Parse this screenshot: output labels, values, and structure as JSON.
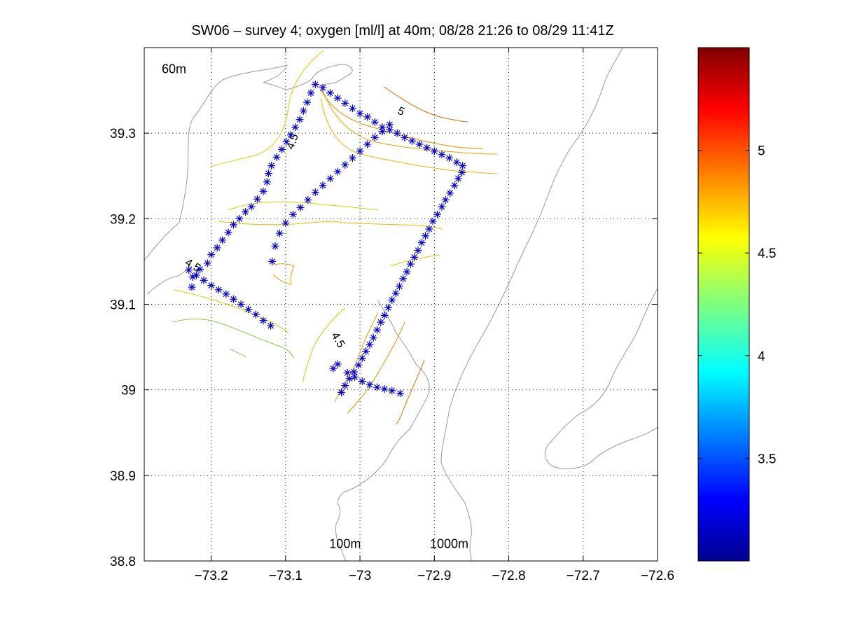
{
  "chart_data": {
    "type": "scatter",
    "title": "SW06 – survey 4; oxygen [ml/l] at 40m; 08/28 21:26 to 08/29 11:41Z",
    "xlabel": "",
    "ylabel": "",
    "xlim": [
      -73.29,
      -72.6
    ],
    "ylim": [
      38.8,
      39.4
    ],
    "xticks": [
      -73.2,
      -73.1,
      -73.0,
      -72.9,
      -72.8,
      -72.7,
      -72.6
    ],
    "xtick_labels": [
      "−73.2",
      "−73.1",
      "−73",
      "−72.9",
      "−72.8",
      "−72.7",
      "−72.6"
    ],
    "yticks": [
      38.8,
      38.9,
      39.0,
      39.1,
      39.2,
      39.3
    ],
    "ytick_labels": [
      "38.8",
      "38.9",
      "39",
      "39.1",
      "39.2",
      "39.3"
    ],
    "grid": "dotted",
    "annotations": [
      {
        "text": "60m",
        "x": -73.25,
        "y": 39.37
      },
      {
        "text": "100m",
        "x": -73.02,
        "y": 38.815
      },
      {
        "text": "1000m",
        "x": -72.88,
        "y": 38.815
      }
    ],
    "contour_labels": [
      {
        "text": "5",
        "x": -72.945,
        "y": 39.325,
        "angle": 25
      },
      {
        "text": "4.5",
        "x": -73.09,
        "y": 39.29,
        "angle": -70
      },
      {
        "text": "4.5",
        "x": -73.225,
        "y": 39.145,
        "angle": 30
      },
      {
        "text": "4.5",
        "x": -73.03,
        "y": 39.058,
        "angle": 60
      }
    ],
    "colorbar": {
      "range": [
        3.0,
        5.5
      ],
      "ticks": [
        3.5,
        4.0,
        4.5,
        5.0
      ],
      "tick_labels": [
        "3.5",
        "4",
        "4.5",
        "5"
      ],
      "colormap": "jet"
    },
    "series": [
      {
        "marker": "*",
        "color": "#0000cc",
        "x": [
          -73.226,
          -73.225,
          -73.215,
          -73.205,
          -73.2,
          -73.192,
          -73.185,
          -73.177,
          -73.17,
          -73.162,
          -73.154,
          -73.146,
          -73.138,
          -73.13,
          -73.125,
          -73.123,
          -73.119,
          -73.112,
          -73.105,
          -73.099,
          -73.093,
          -73.087,
          -73.081,
          -73.076,
          -73.071,
          -73.066,
          -73.06,
          -73.05,
          -73.04,
          -73.03,
          -73.02,
          -73.01,
          -73.0,
          -72.99,
          -72.98,
          -72.97,
          -72.96,
          -72.95,
          -72.94,
          -72.93,
          -72.92,
          -72.91,
          -72.9,
          -72.89,
          -72.88,
          -72.87,
          -72.862,
          -72.863,
          -72.868,
          -72.873,
          -72.879,
          -72.885,
          -72.89,
          -72.896,
          -72.902,
          -72.907,
          -72.912,
          -72.917,
          -72.922,
          -72.927,
          -72.932,
          -72.937,
          -72.942,
          -72.947,
          -72.952,
          -72.957,
          -72.962,
          -72.967,
          -72.972,
          -72.977,
          -72.982,
          -72.987,
          -72.992,
          -72.997,
          -73.002,
          -73.008,
          -73.014,
          -73.02,
          -73.025,
          -73.03,
          -73.036,
          -73.017,
          -73.007,
          -72.997,
          -72.987,
          -72.977,
          -72.967,
          -72.957,
          -72.946,
          -72.96,
          -72.97,
          -72.98,
          -72.99,
          -73.0,
          -73.01,
          -73.02,
          -73.03,
          -73.04,
          -73.05,
          -73.06,
          -73.07,
          -73.08,
          -73.09,
          -73.1,
          -73.108,
          -73.114,
          -73.118,
          -73.12,
          -73.13,
          -73.14,
          -73.15,
          -73.16,
          -73.17,
          -73.18,
          -73.19,
          -73.2,
          -73.21,
          -73.22,
          -73.23
        ],
        "y": [
          39.12,
          39.132,
          39.141,
          39.148,
          39.158,
          39.166,
          39.175,
          39.184,
          39.193,
          39.2,
          39.208,
          39.214,
          39.223,
          39.232,
          39.243,
          39.253,
          39.262,
          39.272,
          39.281,
          39.29,
          39.298,
          39.307,
          39.316,
          39.326,
          39.336,
          39.347,
          39.357,
          39.353,
          39.347,
          39.341,
          39.335,
          39.329,
          39.323,
          39.319,
          39.313,
          39.307,
          39.304,
          39.3,
          39.295,
          39.291,
          39.287,
          39.283,
          39.279,
          39.275,
          39.271,
          39.266,
          39.262,
          39.254,
          39.247,
          39.239,
          39.23,
          39.222,
          39.214,
          39.205,
          39.197,
          39.188,
          39.18,
          39.172,
          39.163,
          39.155,
          39.147,
          39.138,
          39.13,
          39.121,
          39.113,
          39.105,
          39.096,
          39.087,
          39.079,
          39.07,
          39.061,
          39.053,
          39.045,
          39.037,
          39.029,
          39.021,
          39.013,
          39.005,
          38.997,
          39.03,
          39.025,
          39.02,
          39.015,
          39.01,
          39.006,
          39.003,
          39.001,
          38.999,
          38.996,
          39.31,
          39.302,
          39.295,
          39.287,
          39.279,
          39.271,
          39.263,
          39.255,
          39.247,
          39.239,
          39.231,
          39.222,
          39.213,
          39.205,
          39.195,
          39.183,
          39.168,
          39.15,
          39.075,
          39.081,
          39.088,
          39.094,
          39.1,
          39.106,
          39.112,
          39.117,
          39.122,
          39.128,
          39.134,
          39.14
        ]
      }
    ]
  }
}
